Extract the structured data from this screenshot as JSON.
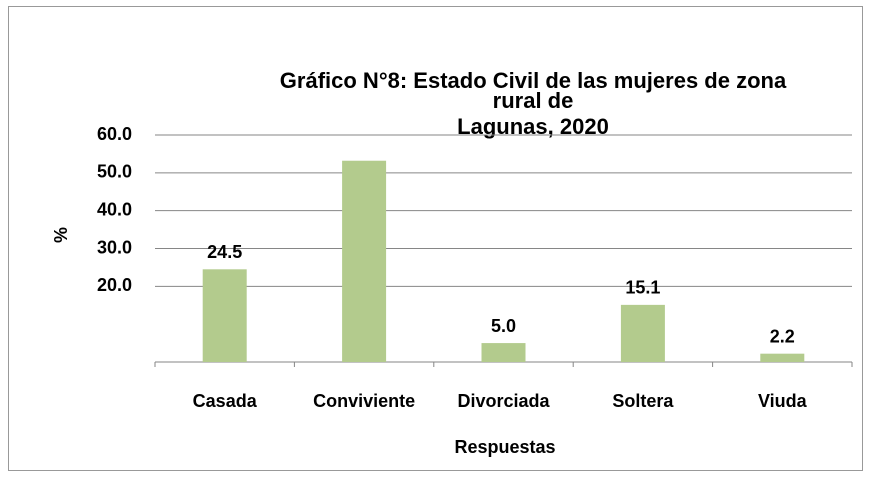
{
  "chart_data": {
    "type": "bar",
    "title": [
      "Gráfico N°8: Estado Civil de las mujeres de zona",
      "rural de",
      "Lagunas, 2020"
    ],
    "x_label": "Respuestas",
    "y_label": "%",
    "categories": [
      "Casada",
      "Conviviente",
      "Divorciada",
      "Soltera",
      "Viuda"
    ],
    "values": [
      24.5,
      53.2,
      5.0,
      15.1,
      2.2
    ],
    "value_labels": [
      "24.5",
      null,
      "5.0",
      "15.1",
      "2.2"
    ],
    "color": "#b3cb8d",
    "ylim": [
      0,
      60
    ],
    "yticks": [
      {
        "value": 20,
        "label": "20.0"
      },
      {
        "value": 30,
        "label": "30.0"
      },
      {
        "value": 40,
        "label": "40.0"
      },
      {
        "value": 50,
        "label": "50.0"
      },
      {
        "value": 60,
        "label": "60.0"
      }
    ],
    "grid": true
  }
}
